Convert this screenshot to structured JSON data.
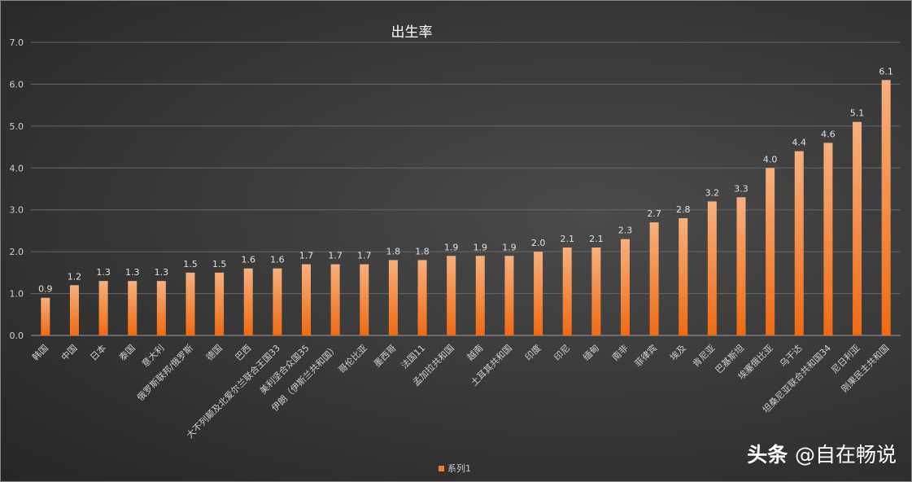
{
  "watermark": {
    "brand": "头条",
    "handle": "@自在畅说"
  },
  "colors": {
    "bar_top": "#f7b07e",
    "bar_bottom": "#f06a12",
    "grid": "#6a6a6a",
    "text": "#d0d0d0"
  },
  "chart_data": {
    "type": "bar",
    "title": "出生率",
    "xlabel": "",
    "ylabel": "",
    "ylim": [
      0,
      7
    ],
    "yticks": [
      "0.0",
      "1.0",
      "2.0",
      "3.0",
      "4.0",
      "5.0",
      "6.0",
      "7.0"
    ],
    "grid": true,
    "legend": {
      "position": "bottom",
      "entries": [
        "系列1"
      ]
    },
    "categories": [
      "韩国",
      "中国",
      "日本",
      "泰国",
      "意大利",
      "俄罗斯联邦/俄罗斯",
      "德国",
      "巴西",
      "大不列颠及北爱尔兰联合王国33",
      "美利坚合众国35",
      "伊朗（伊斯兰共和国）",
      "哥伦比亚",
      "墨西哥",
      "法国11",
      "孟加拉共和国",
      "越南",
      "土耳其共和国",
      "印度",
      "印尼",
      "缅甸",
      "南非",
      "菲律宾",
      "埃及",
      "肯尼亚",
      "巴基斯坦",
      "埃塞俄比亚",
      "乌干达",
      "坦桑尼亚联合共和国34",
      "尼日利亚",
      "刚果民主共和国"
    ],
    "series": [
      {
        "name": "系列1",
        "values": [
          0.9,
          1.2,
          1.3,
          1.3,
          1.3,
          1.5,
          1.5,
          1.6,
          1.6,
          1.7,
          1.7,
          1.7,
          1.8,
          1.8,
          1.9,
          1.9,
          1.9,
          2.0,
          2.1,
          2.1,
          2.3,
          2.7,
          2.8,
          3.2,
          3.3,
          4.0,
          4.4,
          4.6,
          5.1,
          6.1
        ]
      }
    ]
  }
}
